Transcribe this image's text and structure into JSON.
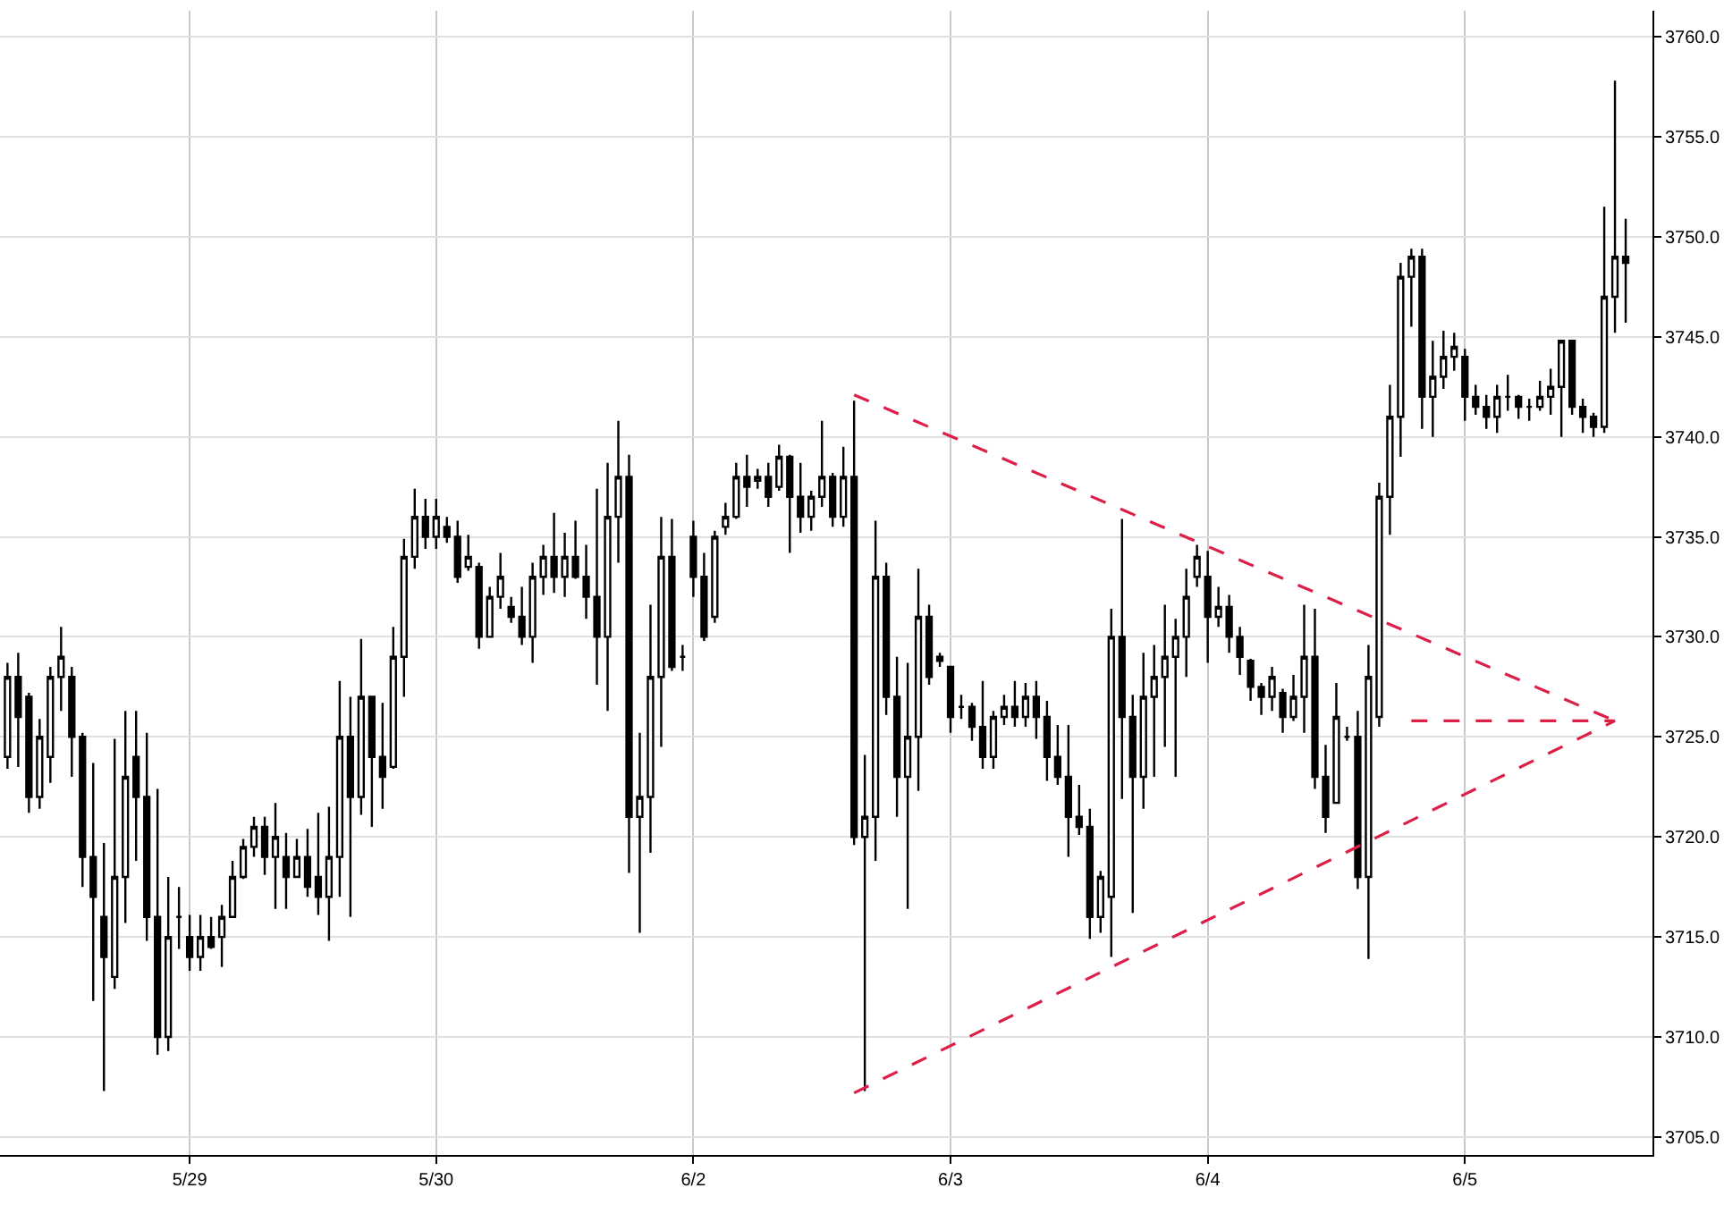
{
  "chart_data": {
    "type": "candlestick",
    "color": "#000000",
    "grid": true,
    "categories": [
      null,
      null,
      null,
      null,
      null,
      null,
      null,
      null,
      null,
      null,
      null,
      null,
      null,
      null,
      null,
      null,
      null,
      "5/29",
      null,
      null,
      null,
      null,
      null,
      null,
      null,
      null,
      null,
      null,
      null,
      null,
      null,
      null,
      null,
      null,
      null,
      null,
      null,
      null,
      null,
      null,
      "5/30",
      null,
      null,
      null,
      null,
      null,
      null,
      null,
      null,
      null,
      null,
      null,
      null,
      null,
      null,
      null,
      null,
      null,
      null,
      null,
      null,
      null,
      null,
      null,
      "6/2",
      null,
      null,
      null,
      null,
      null,
      null,
      null,
      null,
      null,
      null,
      null,
      null,
      null,
      null,
      null,
      null,
      null,
      null,
      null,
      null,
      null,
      null,
      null,
      "6/3",
      null,
      null,
      null,
      null,
      null,
      null,
      null,
      null,
      null,
      null,
      null,
      null,
      null,
      null,
      null,
      null,
      null,
      null,
      null,
      null,
      null,
      null,
      null,
      "6/4",
      null,
      null,
      null,
      null,
      null,
      null,
      null,
      null,
      null,
      null,
      null,
      null,
      null,
      null,
      null,
      null,
      null,
      null,
      null,
      null,
      null,
      null,
      null,
      "6/5",
      null,
      null,
      null,
      null,
      null,
      null,
      null,
      null,
      null,
      null,
      null,
      null,
      null,
      null,
      null
    ],
    "ohlc": [
      [
        3724,
        3728.7,
        3723.4,
        3728
      ],
      [
        3728,
        3729.2,
        3723.5,
        3726
      ],
      [
        3727,
        3727.2,
        3721.2,
        3722
      ],
      [
        3722,
        3725.9,
        3721.4,
        3725
      ],
      [
        3724,
        3728.5,
        3722.7,
        3728
      ],
      [
        3728,
        3730.5,
        3726.3,
        3729
      ],
      [
        3728,
        3728.5,
        3723.0,
        3725
      ],
      [
        3725,
        3725.2,
        3717.5,
        3719
      ],
      [
        3719,
        3723.7,
        3711.8,
        3717
      ],
      [
        3716,
        3719.7,
        3707.3,
        3714
      ],
      [
        3713,
        3724.9,
        3712.4,
        3718
      ],
      [
        3718,
        3726.3,
        3715.7,
        3723
      ],
      [
        3724,
        3726.3,
        3718.8,
        3722
      ],
      [
        3722,
        3725.2,
        3714.8,
        3716
      ],
      [
        3716,
        3722.4,
        3709.1,
        3710
      ],
      [
        3710,
        3718.0,
        3709.3,
        3715
      ],
      [
        3716,
        3717.5,
        3714.4,
        3716
      ],
      [
        3715,
        3716.1,
        3713.3,
        3714
      ],
      [
        3714,
        3716.1,
        3713.3,
        3715
      ],
      [
        3715,
        3716.0,
        3714.4,
        3714.5
      ],
      [
        3715,
        3716.6,
        3713.5,
        3716
      ],
      [
        3716,
        3718.8,
        3716.0,
        3718
      ],
      [
        3718,
        3719.9,
        3717.9,
        3719.5
      ],
      [
        3719.5,
        3721.0,
        3719.0,
        3720.5
      ],
      [
        3720.5,
        3721.0,
        3718.1,
        3719
      ],
      [
        3719,
        3721.7,
        3716.4,
        3720
      ],
      [
        3719,
        3720.2,
        3716.4,
        3718
      ],
      [
        3718,
        3719.9,
        3718.0,
        3719
      ],
      [
        3719,
        3720.4,
        3717.0,
        3717.5
      ],
      [
        3718,
        3721.2,
        3716.1,
        3717
      ],
      [
        3717,
        3721.5,
        3714.8,
        3719
      ],
      [
        3719,
        3727.8,
        3717.0,
        3725
      ],
      [
        3725,
        3727.0,
        3716.0,
        3722
      ],
      [
        3722,
        3729.9,
        3721.1,
        3727
      ],
      [
        3727,
        3727.0,
        3720.5,
        3724
      ],
      [
        3724,
        3726.7,
        3721.4,
        3723
      ],
      [
        3723.5,
        3730.5,
        3723.4,
        3729
      ],
      [
        3729,
        3734.9,
        3727.0,
        3734
      ],
      [
        3734,
        3737.4,
        3733.4,
        3736
      ],
      [
        3736,
        3736.9,
        3734.4,
        3735
      ],
      [
        3735,
        3736.9,
        3734.4,
        3736
      ],
      [
        3735.5,
        3736.0,
        3734.7,
        3735
      ],
      [
        3735,
        3735.8,
        3732.7,
        3733
      ],
      [
        3733.5,
        3735.1,
        3733.3,
        3734
      ],
      [
        3733.5,
        3733.7,
        3729.4,
        3730
      ],
      [
        3730,
        3732.5,
        3730.0,
        3732
      ],
      [
        3732,
        3734.2,
        3731.4,
        3733
      ],
      [
        3731.5,
        3732.0,
        3730.7,
        3731
      ],
      [
        3731,
        3732.5,
        3729.6,
        3730
      ],
      [
        3730,
        3733.7,
        3728.7,
        3733
      ],
      [
        3733,
        3734.6,
        3732.1,
        3734
      ],
      [
        3734,
        3736.2,
        3732.2,
        3733
      ],
      [
        3733,
        3735.2,
        3732.0,
        3734
      ],
      [
        3734,
        3735.8,
        3732.9,
        3733
      ],
      [
        3733,
        3734.6,
        3730.9,
        3732
      ],
      [
        3732,
        3737.4,
        3727.6,
        3730
      ],
      [
        3730,
        3738.7,
        3726.3,
        3736
      ],
      [
        3736,
        3740.8,
        3733.7,
        3738
      ],
      [
        3738,
        3739.1,
        3718.2,
        3721
      ],
      [
        3721,
        3725.2,
        3715.2,
        3722
      ],
      [
        3722,
        3731.6,
        3719.2,
        3728
      ],
      [
        3728,
        3736.0,
        3724.5,
        3734
      ],
      [
        3734,
        3735.9,
        3728.3,
        3728.5
      ],
      [
        3729,
        3729.6,
        3728.3,
        3729
      ],
      [
        3735,
        3735.8,
        3732.0,
        3733
      ],
      [
        3733,
        3734.2,
        3729.8,
        3730
      ],
      [
        3731,
        3735.3,
        3730.7,
        3735
      ],
      [
        3735.5,
        3736.7,
        3735.1,
        3736
      ],
      [
        3736,
        3738.7,
        3735.9,
        3738
      ],
      [
        3738,
        3739.1,
        3736.5,
        3737.5
      ],
      [
        3737.8,
        3738.4,
        3737.4,
        3738
      ],
      [
        3738,
        3738.7,
        3736.5,
        3737
      ],
      [
        3737.5,
        3739.6,
        3737.3,
        3739
      ],
      [
        3739,
        3739.1,
        3734.2,
        3737
      ],
      [
        3737,
        3738.7,
        3735.2,
        3736
      ],
      [
        3736,
        3737.3,
        3735.3,
        3737
      ],
      [
        3737,
        3740.8,
        3736.5,
        3738
      ],
      [
        3738,
        3738.2,
        3735.5,
        3736
      ],
      [
        3736,
        3739.5,
        3735.5,
        3738
      ],
      [
        3738,
        3741.8,
        3719.6,
        3720
      ],
      [
        3720,
        3724.1,
        3707.3,
        3721
      ],
      [
        3721,
        3735.8,
        3718.8,
        3733
      ],
      [
        3733,
        3733.7,
        3726.1,
        3727
      ],
      [
        3727,
        3729.0,
        3721.0,
        3723
      ],
      [
        3723,
        3728.7,
        3716.4,
        3725
      ],
      [
        3725,
        3733.4,
        3722.3,
        3731
      ],
      [
        3731,
        3731.6,
        3727.6,
        3728
      ],
      [
        3728.8,
        3729.2,
        3728.5,
        3729
      ],
      [
        3728.5,
        3728.5,
        3725.2,
        3726
      ],
      [
        3726.5,
        3727.1,
        3725.9,
        3726.5
      ],
      [
        3726.5,
        3726.7,
        3724.8,
        3725.5
      ],
      [
        3725.5,
        3727.8,
        3723.4,
        3724
      ],
      [
        3724,
        3726.3,
        3723.4,
        3726
      ],
      [
        3726,
        3727.1,
        3725.6,
        3726.5
      ],
      [
        3726.5,
        3727.8,
        3725.5,
        3726
      ],
      [
        3726,
        3727.7,
        3725.5,
        3727
      ],
      [
        3727,
        3727.8,
        3724.9,
        3726
      ],
      [
        3726,
        3726.8,
        3722.8,
        3724
      ],
      [
        3724,
        3725.6,
        3722.6,
        3723
      ],
      [
        3723,
        3725.6,
        3719.0,
        3721
      ],
      [
        3721,
        3722.6,
        3720.1,
        3720.5
      ],
      [
        3720.5,
        3721.4,
        3714.9,
        3716
      ],
      [
        3716,
        3718.3,
        3715.2,
        3718
      ],
      [
        3717,
        3731.4,
        3714.0,
        3730
      ],
      [
        3730,
        3735.9,
        3721.9,
        3726
      ],
      [
        3726,
        3727.1,
        3716.2,
        3723
      ],
      [
        3723,
        3729.2,
        3721.4,
        3727
      ],
      [
        3727,
        3729.6,
        3723.0,
        3728
      ],
      [
        3728,
        3731.6,
        3724.5,
        3729
      ],
      [
        3729,
        3730.9,
        3723.0,
        3730
      ],
      [
        3730,
        3733.4,
        3728.0,
        3732
      ],
      [
        3733,
        3734.6,
        3732.5,
        3734
      ],
      [
        3733,
        3734.3,
        3728.7,
        3731
      ],
      [
        3731,
        3732.5,
        3730.5,
        3731.5
      ],
      [
        3731.5,
        3732.1,
        3729.2,
        3730
      ],
      [
        3730,
        3730.5,
        3728.1,
        3729
      ],
      [
        3728.8,
        3728.9,
        3726.8,
        3727.5
      ],
      [
        3727.5,
        3727.7,
        3726.1,
        3727
      ],
      [
        3727,
        3728.5,
        3726.3,
        3728
      ],
      [
        3727.2,
        3727.4,
        3725.2,
        3726
      ],
      [
        3726,
        3728.1,
        3725.8,
        3727
      ],
      [
        3727,
        3731.6,
        3725.2,
        3729
      ],
      [
        3729,
        3731.4,
        3722.4,
        3723
      ],
      [
        3723,
        3724.6,
        3720.2,
        3721
      ],
      [
        3721.7,
        3727.7,
        3721.7,
        3726
      ],
      [
        3725,
        3725.5,
        3724.8,
        3725
      ],
      [
        3725,
        3726.3,
        3717.4,
        3718
      ],
      [
        3718,
        3729.6,
        3713.9,
        3728
      ],
      [
        3726,
        3737.7,
        3725.5,
        3737
      ],
      [
        3737,
        3742.6,
        3735.1,
        3741
      ],
      [
        3741,
        3748.7,
        3739.0,
        3748
      ],
      [
        3748,
        3749.4,
        3745.5,
        3749
      ],
      [
        3749,
        3749.4,
        3740.4,
        3742
      ],
      [
        3742,
        3744.8,
        3740.0,
        3743
      ],
      [
        3743,
        3745.3,
        3742.4,
        3744
      ],
      [
        3744,
        3745.2,
        3743.3,
        3744.5
      ],
      [
        3744,
        3744.4,
        3740.8,
        3742
      ],
      [
        3742,
        3742.6,
        3741.1,
        3741.5
      ],
      [
        3741.5,
        3742.1,
        3740.4,
        3741
      ],
      [
        3741,
        3742.6,
        3740.2,
        3742
      ],
      [
        3742,
        3743.1,
        3741.3,
        3742
      ],
      [
        3742,
        3742.1,
        3740.9,
        3741.5
      ],
      [
        3741.5,
        3741.9,
        3740.8,
        3741.5
      ],
      [
        3741.5,
        3742.8,
        3741.3,
        3742
      ],
      [
        3742,
        3743.4,
        3741.1,
        3742.5
      ],
      [
        3742.5,
        3744.8,
        3740.0,
        3744.8
      ],
      [
        3744.8,
        3744.8,
        3741.1,
        3741.5
      ],
      [
        3741.5,
        3741.9,
        3740.2,
        3741
      ],
      [
        3741,
        3741.2,
        3740.0,
        3740.5
      ],
      [
        3740.5,
        3751.5,
        3740.2,
        3747
      ],
      [
        3747,
        3757.8,
        3745.2,
        3749
      ],
      [
        3749,
        3750.9,
        3745.7,
        3748.7
      ]
    ],
    "series": [
      {
        "type": "line",
        "color": "#dc1f48",
        "line_style": "dashed",
        "values": [
          null,
          null,
          null,
          null,
          null,
          null,
          null,
          null,
          null,
          null,
          null,
          null,
          null,
          null,
          null,
          null,
          null,
          null,
          null,
          null,
          null,
          null,
          null,
          null,
          null,
          null,
          null,
          null,
          null,
          null,
          null,
          null,
          null,
          null,
          null,
          null,
          null,
          null,
          null,
          null,
          null,
          null,
          null,
          null,
          null,
          null,
          null,
          null,
          null,
          null,
          null,
          null,
          null,
          null,
          null,
          null,
          null,
          null,
          null,
          null,
          null,
          null,
          null,
          null,
          null,
          null,
          null,
          null,
          null,
          null,
          null,
          null,
          null,
          null,
          null,
          null,
          null,
          null,
          null,
          3742.1,
          null,
          null,
          null,
          null,
          null,
          null,
          null,
          null,
          null,
          null,
          null,
          null,
          null,
          null,
          null,
          null,
          null,
          null,
          null,
          null,
          null,
          null,
          null,
          null,
          null,
          null,
          null,
          null,
          null,
          null,
          null,
          null,
          null,
          null,
          null,
          null,
          null,
          null,
          null,
          null,
          null,
          null,
          null,
          null,
          null,
          null,
          null,
          null,
          null,
          null,
          null,
          null,
          null,
          null,
          null,
          null,
          null,
          null,
          null,
          null,
          null,
          null,
          null,
          null,
          null,
          null,
          null,
          null,
          null,
          null,
          3725.8,
          null
        ]
      },
      {
        "type": "line",
        "color": "#dc1f48",
        "line_style": "dashed",
        "values": [
          null,
          null,
          null,
          null,
          null,
          null,
          null,
          null,
          null,
          null,
          null,
          null,
          null,
          null,
          null,
          null,
          null,
          null,
          null,
          null,
          null,
          null,
          null,
          null,
          null,
          null,
          null,
          null,
          null,
          null,
          null,
          null,
          null,
          null,
          null,
          null,
          null,
          null,
          null,
          null,
          null,
          null,
          null,
          null,
          null,
          null,
          null,
          null,
          null,
          null,
          null,
          null,
          null,
          null,
          null,
          null,
          null,
          null,
          null,
          null,
          null,
          null,
          null,
          null,
          null,
          null,
          null,
          null,
          null,
          null,
          null,
          null,
          null,
          null,
          null,
          null,
          null,
          null,
          null,
          3707.2,
          null,
          null,
          null,
          null,
          null,
          null,
          null,
          null,
          null,
          null,
          null,
          null,
          null,
          null,
          null,
          null,
          null,
          null,
          null,
          null,
          null,
          null,
          null,
          null,
          null,
          null,
          null,
          null,
          null,
          null,
          null,
          null,
          null,
          null,
          null,
          null,
          null,
          null,
          null,
          null,
          null,
          null,
          null,
          null,
          null,
          null,
          null,
          null,
          null,
          null,
          null,
          null,
          null,
          null,
          null,
          null,
          null,
          null,
          null,
          null,
          null,
          null,
          null,
          null,
          null,
          null,
          null,
          null,
          null,
          null,
          3725.8,
          null
        ]
      },
      {
        "type": "line",
        "color": "#dc1f48",
        "line_style": "dashed",
        "values": [
          null,
          null,
          null,
          null,
          null,
          null,
          null,
          null,
          null,
          null,
          null,
          null,
          null,
          null,
          null,
          null,
          null,
          null,
          null,
          null,
          null,
          null,
          null,
          null,
          null,
          null,
          null,
          null,
          null,
          null,
          null,
          null,
          null,
          null,
          null,
          null,
          null,
          null,
          null,
          null,
          null,
          null,
          null,
          null,
          null,
          null,
          null,
          null,
          null,
          null,
          null,
          null,
          null,
          null,
          null,
          null,
          null,
          null,
          null,
          null,
          null,
          null,
          null,
          null,
          null,
          null,
          null,
          null,
          null,
          null,
          null,
          null,
          null,
          null,
          null,
          null,
          null,
          null,
          null,
          null,
          null,
          null,
          null,
          null,
          null,
          null,
          null,
          null,
          null,
          null,
          null,
          null,
          null,
          null,
          null,
          null,
          null,
          null,
          null,
          null,
          null,
          null,
          null,
          null,
          null,
          null,
          null,
          null,
          null,
          null,
          null,
          null,
          null,
          null,
          null,
          null,
          null,
          null,
          null,
          null,
          null,
          null,
          null,
          null,
          null,
          null,
          null,
          null,
          null,
          null,
          null,
          3725.8,
          null,
          null,
          null,
          null,
          null,
          null,
          null,
          null,
          null,
          null,
          null,
          null,
          null,
          null,
          null,
          null,
          null,
          null,
          3725.8,
          null
        ]
      }
    ],
    "ylim": [
      3704.1,
      3761.3
    ],
    "yticks": [
      {
        "value": 3705,
        "label": "3705.0"
      },
      {
        "value": 3710,
        "label": "3710.0"
      },
      {
        "value": 3715,
        "label": "3715.0"
      },
      {
        "value": 3720,
        "label": "3720.0"
      },
      {
        "value": 3725,
        "label": "3725.0"
      },
      {
        "value": 3730,
        "label": "3730.0"
      },
      {
        "value": 3735,
        "label": "3735.0"
      },
      {
        "value": 3740,
        "label": "3740.0"
      },
      {
        "value": 3745,
        "label": "3745.0"
      },
      {
        "value": 3750,
        "label": "3750.0"
      },
      {
        "value": 3755,
        "label": "3755.0"
      },
      {
        "value": 3760,
        "label": "3760.0"
      }
    ]
  }
}
